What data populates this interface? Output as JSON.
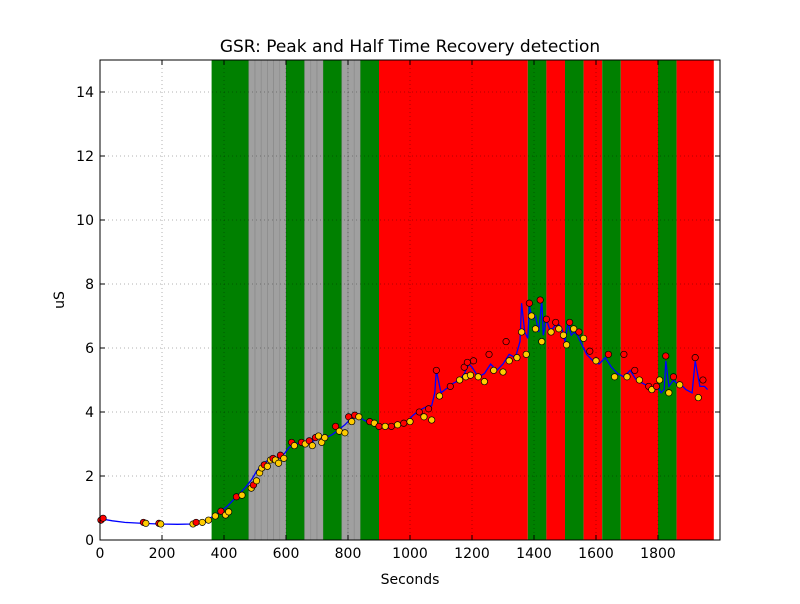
{
  "chart_data": {
    "type": "line",
    "title": "GSR: Peak and Half Time Recovery detection",
    "xlabel": "Seconds",
    "ylabel": "uS",
    "xlim": [
      0,
      2000
    ],
    "ylim": [
      0,
      15
    ],
    "x_ticks": [
      0,
      200,
      400,
      600,
      800,
      1000,
      1200,
      1400,
      1600,
      1800
    ],
    "y_ticks": [
      0,
      2,
      4,
      6,
      8,
      10,
      12,
      14
    ],
    "grid": true,
    "bands": [
      {
        "start": 360,
        "end": 480,
        "color": "#008000"
      },
      {
        "start": 480,
        "end": 500,
        "color": "#a0a0a0"
      },
      {
        "start": 500,
        "end": 520,
        "color": "#a0a0a0"
      },
      {
        "start": 520,
        "end": 540,
        "color": "#a0a0a0"
      },
      {
        "start": 540,
        "end": 560,
        "color": "#a0a0a0"
      },
      {
        "start": 560,
        "end": 580,
        "color": "#a0a0a0"
      },
      {
        "start": 580,
        "end": 600,
        "color": "#a0a0a0"
      },
      {
        "start": 600,
        "end": 660,
        "color": "#008000"
      },
      {
        "start": 660,
        "end": 680,
        "color": "#a0a0a0"
      },
      {
        "start": 680,
        "end": 700,
        "color": "#a0a0a0"
      },
      {
        "start": 700,
        "end": 720,
        "color": "#a0a0a0"
      },
      {
        "start": 720,
        "end": 780,
        "color": "#008000"
      },
      {
        "start": 780,
        "end": 800,
        "color": "#a0a0a0"
      },
      {
        "start": 800,
        "end": 820,
        "color": "#a0a0a0"
      },
      {
        "start": 820,
        "end": 840,
        "color": "#a0a0a0"
      },
      {
        "start": 840,
        "end": 900,
        "color": "#008000"
      },
      {
        "start": 900,
        "end": 1380,
        "color": "#ff0000"
      },
      {
        "start": 1380,
        "end": 1440,
        "color": "#008000"
      },
      {
        "start": 1440,
        "end": 1500,
        "color": "#ff0000"
      },
      {
        "start": 1500,
        "end": 1560,
        "color": "#008000"
      },
      {
        "start": 1560,
        "end": 1620,
        "color": "#ff0000"
      },
      {
        "start": 1620,
        "end": 1680,
        "color": "#008000"
      },
      {
        "start": 1680,
        "end": 1800,
        "color": "#ff0000"
      },
      {
        "start": 1800,
        "end": 1860,
        "color": "#008000"
      },
      {
        "start": 1860,
        "end": 1980,
        "color": "#ff0000"
      }
    ],
    "series": [
      {
        "color": "#0000ff",
        "x": [
          0,
          10,
          40,
          80,
          140,
          190,
          250,
          300,
          330,
          350,
          370,
          390,
          410,
          430,
          450,
          470,
          490,
          505,
          520,
          535,
          550,
          565,
          580,
          595,
          610,
          630,
          650,
          670,
          690,
          710,
          730,
          750,
          770,
          790,
          810,
          830,
          850,
          870,
          890,
          910,
          930,
          950,
          970,
          990,
          1010,
          1030,
          1050,
          1070,
          1080,
          1085,
          1100,
          1120,
          1140,
          1160,
          1175,
          1190,
          1200,
          1220,
          1240,
          1260,
          1280,
          1300,
          1320,
          1340,
          1355,
          1360,
          1370,
          1380,
          1385,
          1395,
          1405,
          1415,
          1425,
          1430,
          1440,
          1450,
          1460,
          1475,
          1490,
          1500,
          1510,
          1520,
          1530,
          1540,
          1555,
          1570,
          1590,
          1610,
          1630,
          1650,
          1660,
          1670,
          1690,
          1710,
          1730,
          1750,
          1770,
          1790,
          1800,
          1810,
          1820,
          1825,
          1835,
          1850,
          1860,
          1870,
          1890,
          1910,
          1920,
          1935,
          1950,
          1960
        ],
        "y": [
          0.6,
          0.65,
          0.6,
          0.55,
          0.52,
          0.5,
          0.49,
          0.5,
          0.55,
          0.65,
          0.78,
          0.9,
          1.05,
          1.25,
          1.45,
          1.65,
          1.9,
          2.15,
          2.3,
          2.45,
          2.55,
          2.5,
          2.6,
          2.7,
          2.9,
          3.0,
          3.05,
          3.0,
          3.1,
          3.2,
          3.2,
          3.3,
          3.45,
          3.6,
          3.8,
          3.9,
          3.75,
          3.65,
          3.6,
          3.55,
          3.5,
          3.55,
          3.6,
          3.7,
          3.9,
          4.05,
          4.15,
          4.2,
          4.6,
          5.3,
          4.6,
          4.75,
          4.9,
          5.0,
          5.2,
          5.5,
          5.4,
          5.1,
          5.2,
          5.5,
          5.3,
          5.5,
          5.8,
          5.7,
          6.2,
          7.4,
          6.5,
          6.3,
          7.3,
          6.9,
          7.0,
          6.5,
          7.5,
          6.4,
          6.9,
          6.6,
          6.6,
          6.8,
          6.6,
          6.2,
          6.8,
          6.4,
          6.5,
          6.4,
          6.1,
          5.8,
          5.6,
          5.5,
          5.7,
          5.4,
          5.3,
          5.2,
          5.1,
          5.3,
          5.0,
          4.9,
          4.8,
          4.7,
          4.8,
          4.6,
          4.7,
          5.6,
          4.8,
          5.0,
          4.9,
          4.9,
          4.7,
          4.6,
          5.6,
          4.8,
          4.8,
          4.7
        ]
      }
    ],
    "markers": [
      {
        "x": 3,
        "y": 0.62,
        "color": "#ff0000"
      },
      {
        "x": 10,
        "y": 0.68,
        "color": "#ff0000"
      },
      {
        "x": 140,
        "y": 0.55,
        "color": "#ff0000"
      },
      {
        "x": 148,
        "y": 0.52,
        "color": "#ffcc00"
      },
      {
        "x": 190,
        "y": 0.52,
        "color": "#ff0000"
      },
      {
        "x": 196,
        "y": 0.5,
        "color": "#ffcc00"
      },
      {
        "x": 300,
        "y": 0.5,
        "color": "#ffcc00"
      },
      {
        "x": 310,
        "y": 0.55,
        "color": "#ff0000"
      },
      {
        "x": 330,
        "y": 0.55,
        "color": "#ffcc00"
      },
      {
        "x": 350,
        "y": 0.62,
        "color": "#ffcc00"
      },
      {
        "x": 372,
        "y": 0.75,
        "color": "#ffcc00"
      },
      {
        "x": 390,
        "y": 0.9,
        "color": "#ff0000"
      },
      {
        "x": 405,
        "y": 0.78,
        "color": "#ffcc00"
      },
      {
        "x": 415,
        "y": 0.88,
        "color": "#ffcc00"
      },
      {
        "x": 440,
        "y": 1.35,
        "color": "#ff0000"
      },
      {
        "x": 458,
        "y": 1.4,
        "color": "#ffcc00"
      },
      {
        "x": 488,
        "y": 1.62,
        "color": "#ffcc00"
      },
      {
        "x": 495,
        "y": 1.72,
        "color": "#ff0000"
      },
      {
        "x": 505,
        "y": 1.85,
        "color": "#ffcc00"
      },
      {
        "x": 515,
        "y": 2.1,
        "color": "#ffcc00"
      },
      {
        "x": 522,
        "y": 2.25,
        "color": "#ffcc00"
      },
      {
        "x": 530,
        "y": 2.35,
        "color": "#ff0000"
      },
      {
        "x": 540,
        "y": 2.3,
        "color": "#ffcc00"
      },
      {
        "x": 550,
        "y": 2.5,
        "color": "#ffcc00"
      },
      {
        "x": 558,
        "y": 2.55,
        "color": "#ff0000"
      },
      {
        "x": 566,
        "y": 2.5,
        "color": "#ffcc00"
      },
      {
        "x": 576,
        "y": 2.4,
        "color": "#ffcc00"
      },
      {
        "x": 582,
        "y": 2.65,
        "color": "#ff0000"
      },
      {
        "x": 593,
        "y": 2.55,
        "color": "#ffcc00"
      },
      {
        "x": 618,
        "y": 3.05,
        "color": "#ff0000"
      },
      {
        "x": 627,
        "y": 2.95,
        "color": "#ffcc00"
      },
      {
        "x": 650,
        "y": 3.05,
        "color": "#ff0000"
      },
      {
        "x": 662,
        "y": 3.0,
        "color": "#ffcc00"
      },
      {
        "x": 675,
        "y": 3.1,
        "color": "#ff0000"
      },
      {
        "x": 685,
        "y": 2.95,
        "color": "#ffcc00"
      },
      {
        "x": 695,
        "y": 3.2,
        "color": "#ff0000"
      },
      {
        "x": 705,
        "y": 3.25,
        "color": "#ffcc00"
      },
      {
        "x": 715,
        "y": 3.05,
        "color": "#ffcc00"
      },
      {
        "x": 725,
        "y": 3.2,
        "color": "#ffcc00"
      },
      {
        "x": 760,
        "y": 3.55,
        "color": "#ff0000"
      },
      {
        "x": 772,
        "y": 3.4,
        "color": "#ffcc00"
      },
      {
        "x": 790,
        "y": 3.35,
        "color": "#ffcc00"
      },
      {
        "x": 802,
        "y": 3.85,
        "color": "#ff0000"
      },
      {
        "x": 812,
        "y": 3.7,
        "color": "#ffcc00"
      },
      {
        "x": 822,
        "y": 3.9,
        "color": "#ff0000"
      },
      {
        "x": 835,
        "y": 3.85,
        "color": "#ffcc00"
      },
      {
        "x": 870,
        "y": 3.7,
        "color": "#ff0000"
      },
      {
        "x": 885,
        "y": 3.65,
        "color": "#ffcc00"
      },
      {
        "x": 900,
        "y": 3.55,
        "color": "#ff0000"
      },
      {
        "x": 920,
        "y": 3.55,
        "color": "#ffcc00"
      },
      {
        "x": 940,
        "y": 3.55,
        "color": "#ff0000"
      },
      {
        "x": 960,
        "y": 3.6,
        "color": "#ffcc00"
      },
      {
        "x": 980,
        "y": 3.65,
        "color": "#ff0000"
      },
      {
        "x": 1000,
        "y": 3.7,
        "color": "#ffcc00"
      },
      {
        "x": 1030,
        "y": 4.0,
        "color": "#ff0000"
      },
      {
        "x": 1045,
        "y": 3.85,
        "color": "#ffcc00"
      },
      {
        "x": 1060,
        "y": 4.1,
        "color": "#ff0000"
      },
      {
        "x": 1070,
        "y": 3.75,
        "color": "#ffcc00"
      },
      {
        "x": 1085,
        "y": 5.3,
        "color": "#ff0000"
      },
      {
        "x": 1095,
        "y": 4.5,
        "color": "#ffcc00"
      },
      {
        "x": 1130,
        "y": 4.8,
        "color": "#ff0000"
      },
      {
        "x": 1160,
        "y": 5.0,
        "color": "#ffcc00"
      },
      {
        "x": 1175,
        "y": 5.4,
        "color": "#ff0000"
      },
      {
        "x": 1180,
        "y": 5.1,
        "color": "#ffcc00"
      },
      {
        "x": 1185,
        "y": 5.55,
        "color": "#ff0000"
      },
      {
        "x": 1195,
        "y": 5.15,
        "color": "#ffcc00"
      },
      {
        "x": 1205,
        "y": 5.6,
        "color": "#ff0000"
      },
      {
        "x": 1220,
        "y": 5.1,
        "color": "#ffcc00"
      },
      {
        "x": 1240,
        "y": 4.95,
        "color": "#ffcc00"
      },
      {
        "x": 1255,
        "y": 5.8,
        "color": "#ff0000"
      },
      {
        "x": 1270,
        "y": 5.3,
        "color": "#ffcc00"
      },
      {
        "x": 1300,
        "y": 5.25,
        "color": "#ffcc00"
      },
      {
        "x": 1310,
        "y": 6.2,
        "color": "#ff0000"
      },
      {
        "x": 1320,
        "y": 5.6,
        "color": "#ffcc00"
      },
      {
        "x": 1345,
        "y": 5.7,
        "color": "#ffcc00"
      },
      {
        "x": 1360,
        "y": 6.5,
        "color": "#ffcc00"
      },
      {
        "x": 1375,
        "y": 5.8,
        "color": "#ffcc00"
      },
      {
        "x": 1385,
        "y": 7.4,
        "color": "#ff0000"
      },
      {
        "x": 1392,
        "y": 7.0,
        "color": "#ffcc00"
      },
      {
        "x": 1405,
        "y": 6.6,
        "color": "#ffcc00"
      },
      {
        "x": 1420,
        "y": 7.5,
        "color": "#ff0000"
      },
      {
        "x": 1425,
        "y": 6.2,
        "color": "#ffcc00"
      },
      {
        "x": 1440,
        "y": 6.9,
        "color": "#ff0000"
      },
      {
        "x": 1455,
        "y": 6.5,
        "color": "#ffcc00"
      },
      {
        "x": 1470,
        "y": 6.8,
        "color": "#ff0000"
      },
      {
        "x": 1480,
        "y": 6.6,
        "color": "#ffcc00"
      },
      {
        "x": 1495,
        "y": 6.4,
        "color": "#ffcc00"
      },
      {
        "x": 1505,
        "y": 6.1,
        "color": "#ffcc00"
      },
      {
        "x": 1515,
        "y": 6.8,
        "color": "#ff0000"
      },
      {
        "x": 1528,
        "y": 6.6,
        "color": "#ffcc00"
      },
      {
        "x": 1545,
        "y": 6.5,
        "color": "#ff0000"
      },
      {
        "x": 1560,
        "y": 6.3,
        "color": "#ffcc00"
      },
      {
        "x": 1580,
        "y": 5.9,
        "color": "#ff0000"
      },
      {
        "x": 1600,
        "y": 5.6,
        "color": "#ffcc00"
      },
      {
        "x": 1640,
        "y": 5.8,
        "color": "#ff0000"
      },
      {
        "x": 1660,
        "y": 5.1,
        "color": "#ffcc00"
      },
      {
        "x": 1690,
        "y": 5.8,
        "color": "#ff0000"
      },
      {
        "x": 1700,
        "y": 5.1,
        "color": "#ffcc00"
      },
      {
        "x": 1725,
        "y": 5.3,
        "color": "#ff0000"
      },
      {
        "x": 1740,
        "y": 5.0,
        "color": "#ffcc00"
      },
      {
        "x": 1770,
        "y": 4.8,
        "color": "#ff0000"
      },
      {
        "x": 1780,
        "y": 4.7,
        "color": "#ffcc00"
      },
      {
        "x": 1795,
        "y": 4.8,
        "color": "#ff0000"
      },
      {
        "x": 1805,
        "y": 5.0,
        "color": "#ffcc00"
      },
      {
        "x": 1825,
        "y": 5.75,
        "color": "#ff0000"
      },
      {
        "x": 1835,
        "y": 4.6,
        "color": "#ffcc00"
      },
      {
        "x": 1850,
        "y": 5.1,
        "color": "#ff0000"
      },
      {
        "x": 1870,
        "y": 4.85,
        "color": "#ffcc00"
      },
      {
        "x": 1920,
        "y": 5.7,
        "color": "#ff0000"
      },
      {
        "x": 1930,
        "y": 4.45,
        "color": "#ffcc00"
      },
      {
        "x": 1945,
        "y": 5.0,
        "color": "#ff0000"
      }
    ]
  }
}
